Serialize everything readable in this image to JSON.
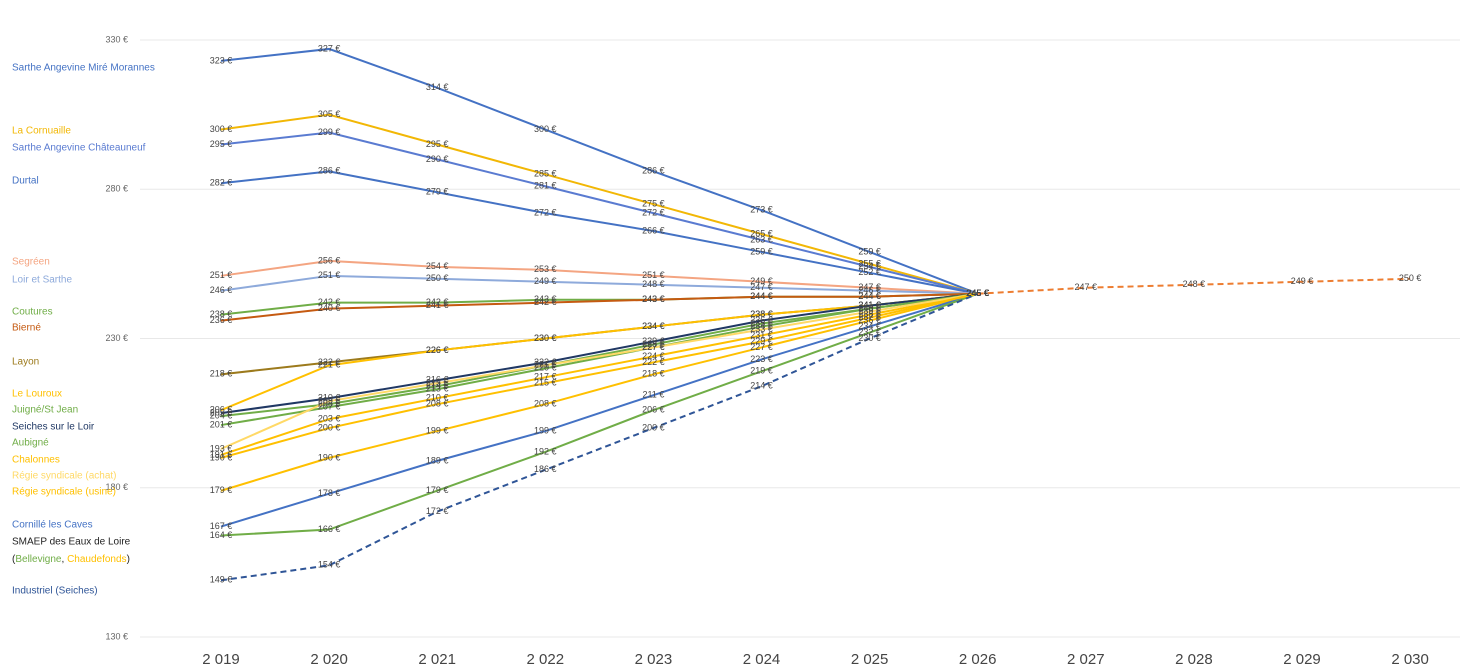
{
  "chart_data": {
    "type": "line",
    "categories": [
      "2 019",
      "2 020",
      "2 021",
      "2 022",
      "2 023",
      "2 024",
      "2 025",
      "2 026",
      "2 027",
      "2 028",
      "2 029",
      "2 030"
    ],
    "ylim": [
      130,
      330
    ],
    "yticks": [
      {
        "value": 130,
        "label": "130 €"
      },
      {
        "value": 180,
        "label": "180 €"
      },
      {
        "value": 230,
        "label": "230 €"
      },
      {
        "value": 280,
        "label": "280 €"
      },
      {
        "value": 330,
        "label": "330 €"
      }
    ],
    "grid": true,
    "legend_group": {
      "name": "SMAEP des Eaux de Loire",
      "open": "(",
      "sep": ", ",
      "close": ")"
    },
    "series": [
      {
        "name": "Sarthe Angevine Miré Morannes",
        "color": "#4472c4",
        "values": [
          323,
          327,
          314,
          300,
          286,
          273,
          259,
          245,
          null,
          null,
          null,
          null
        ],
        "value_labels": [
          "323 €",
          "327 €",
          "314 €",
          "300 €",
          "286 €",
          "273 €",
          "259 €",
          "245 €",
          null,
          null,
          null,
          null
        ]
      },
      {
        "name": "La Cornuaille",
        "color": "#f2b705",
        "values": [
          300,
          305,
          295,
          285,
          275,
          265,
          255,
          245,
          null,
          null,
          null,
          null
        ],
        "value_labels": [
          "300 €",
          "305 €",
          "295 €",
          "285 €",
          "275 €",
          "265 €",
          "255 €",
          "245 €",
          null,
          null,
          null,
          null
        ]
      },
      {
        "name": "Sarthe Angevine Châteauneuf",
        "color": "#5a7bd1",
        "values": [
          295,
          299,
          290,
          281,
          272,
          263,
          254,
          245,
          null,
          null,
          null,
          null
        ],
        "value_labels": [
          "295 €",
          "299 €",
          "290 €",
          "281 €",
          "272 €",
          "263 €",
          "254 €",
          "245 €",
          null,
          null,
          null,
          null
        ]
      },
      {
        "name": "Durtal",
        "color": "#4472c4",
        "values": [
          282,
          286,
          279,
          272,
          266,
          259,
          252,
          245,
          null,
          null,
          null,
          null
        ],
        "value_labels": [
          "282 €",
          "286 €",
          "279 €",
          "272 €",
          "266 €",
          "259 €",
          "252 €",
          "245 €",
          null,
          null,
          null,
          null
        ]
      },
      {
        "name": "Segréen",
        "color": "#f4a582",
        "values": [
          251,
          256,
          254,
          253,
          251,
          249,
          247,
          245,
          null,
          null,
          null,
          null
        ],
        "value_labels": [
          "251 €",
          "256 €",
          "254 €",
          "253 €",
          "251 €",
          "249 €",
          "247 €",
          "245 €",
          null,
          null,
          null,
          null
        ]
      },
      {
        "name": "Loir et Sarthe",
        "color": "#8eaadb",
        "values": [
          246,
          251,
          250,
          249,
          248,
          247,
          246,
          245,
          null,
          null,
          null,
          null
        ],
        "value_labels": [
          "246 €",
          "251 €",
          "250 €",
          "249 €",
          "248 €",
          "247 €",
          "246 €",
          "245 €",
          null,
          null,
          null,
          null
        ]
      },
      {
        "name": "Coutures",
        "color": "#70ad47",
        "values": [
          238,
          242,
          242,
          243,
          243,
          244,
          244,
          245,
          null,
          null,
          null,
          null
        ],
        "value_labels": [
          "238 €",
          "242 €",
          "242 €",
          "243 €",
          "243 €",
          "244 €",
          "244 €",
          "245 €",
          null,
          null,
          null,
          null
        ]
      },
      {
        "name": "Bierné",
        "color": "#c55a11",
        "values": [
          236,
          240,
          241,
          242,
          243,
          244,
          244,
          245,
          null,
          null,
          null,
          null
        ],
        "value_labels": [
          "236 €",
          "240 €",
          "241 €",
          "242 €",
          "243 €",
          "244 €",
          "244 €",
          "245 €",
          null,
          null,
          null,
          null
        ]
      },
      {
        "name": "Layon",
        "color": "#9c7a1c",
        "values": [
          218,
          222,
          226,
          230,
          234,
          238,
          241,
          245,
          null,
          null,
          null,
          null
        ],
        "value_labels": [
          "218 €",
          "222 €",
          "226 €",
          "230 €",
          "234 €",
          "238 €",
          "241 €",
          "245 €",
          null,
          null,
          null,
          null
        ]
      },
      {
        "name": "Le Louroux",
        "color": "#ffc000",
        "values": [
          206,
          221,
          226,
          230,
          234,
          238,
          241,
          245,
          null,
          null,
          null,
          null
        ],
        "value_labels": [
          "206 €",
          "221 €",
          "226 €",
          "230 €",
          "234 €",
          "238 €",
          "241 €",
          "245 €",
          null,
          null,
          null,
          null
        ]
      },
      {
        "name": "Juigné/St Jean",
        "color": "#70ad47",
        "values": [
          204,
          208,
          214,
          221,
          228,
          235,
          240,
          245,
          null,
          null,
          null,
          null
        ],
        "value_labels": [
          "204 €",
          "208 €",
          "214 €",
          "221 €",
          "228 €",
          "235 €",
          "240 €",
          "245 €",
          null,
          null,
          null,
          null
        ]
      },
      {
        "name": "Seiches sur le Loir",
        "color": "#203864",
        "values": [
          205,
          210,
          216,
          222,
          229,
          236,
          241,
          245,
          null,
          null,
          null,
          null
        ],
        "value_labels": [
          "205 €",
          "210 €",
          "216 €",
          "222 €",
          "229 €",
          "236 €",
          "241 €",
          "245 €",
          null,
          null,
          null,
          null
        ]
      },
      {
        "name": "Aubigné",
        "color": "#70ad47",
        "values": [
          201,
          207,
          213,
          220,
          227,
          234,
          240,
          245,
          null,
          null,
          null,
          null
        ],
        "value_labels": [
          "201 €",
          "207 €",
          "213 €",
          "220 €",
          "227 €",
          "234 €",
          "240 €",
          "245 €",
          null,
          null,
          null,
          null
        ]
      },
      {
        "name": "Chalonnes",
        "color": "#ffc000",
        "values": [
          191,
          203,
          210,
          217,
          224,
          231,
          238,
          245,
          null,
          null,
          null,
          null
        ],
        "value_labels": [
          "191 €",
          "203 €",
          "210 €",
          "217 €",
          "224 €",
          "231 €",
          "238 €",
          "245 €",
          null,
          null,
          null,
          null
        ]
      },
      {
        "name": "Régie syndicale (achat)",
        "color": "#ffd966",
        "values": [
          193,
          209,
          215,
          221,
          227,
          233,
          239,
          245,
          null,
          null,
          null,
          null
        ],
        "value_labels": [
          "193 €",
          "209 €",
          "215 €",
          "221 €",
          "227 €",
          "233 €",
          "239 €",
          "245 €",
          null,
          null,
          null,
          null
        ]
      },
      {
        "name": "Régie syndicale (usine)",
        "color": "#ffc000",
        "values": [
          179,
          190,
          199,
          208,
          218,
          227,
          236,
          245,
          null,
          null,
          null,
          null
        ],
        "value_labels": [
          "179 €",
          "190 €",
          "199 €",
          "208 €",
          "218 €",
          "227 €",
          "236 €",
          "245 €",
          null,
          null,
          null,
          null
        ]
      },
      {
        "name": "Cornillé les Caves",
        "color": "#4472c4",
        "values": [
          167,
          178,
          189,
          199,
          211,
          223,
          234,
          245,
          null,
          null,
          null,
          null
        ],
        "value_labels": [
          "167 €",
          "178 €",
          "189 €",
          "199 €",
          "211 €",
          "223 €",
          "234 €",
          "245 €",
          null,
          null,
          null,
          null
        ]
      },
      {
        "name": "Bellevigne",
        "color": "#70ad47",
        "values": [
          164,
          166,
          179,
          192,
          206,
          219,
          232,
          245,
          null,
          null,
          null,
          null
        ],
        "value_labels": [
          "164 €",
          "166 €",
          "179 €",
          "192 €",
          "206 €",
          "219 €",
          "232 €",
          "245 €",
          null,
          null,
          null,
          null
        ]
      },
      {
        "name": "Chaudefonds",
        "color": "#ffc000",
        "values": [
          190,
          200,
          208,
          215,
          222,
          229,
          237,
          245,
          null,
          null,
          null,
          null
        ],
        "value_labels": [
          "190 €",
          "200 €",
          "208 €",
          "215 €",
          "222 €",
          "229 €",
          "237 €",
          "245 €",
          null,
          null,
          null,
          null
        ]
      },
      {
        "name": "Industriel (Seiches)",
        "color": "#2f5597",
        "dashed": true,
        "values": [
          149,
          154,
          172,
          186,
          200,
          214,
          230,
          245,
          null,
          null,
          null,
          null
        ],
        "value_labels": [
          "149 €",
          "154 €",
          "172 €",
          "186 €",
          "200 €",
          "214 €",
          "230 €",
          "245 €",
          null,
          null,
          null,
          null
        ]
      },
      {
        "color": "#ed7d31",
        "dashed": true,
        "values": [
          null,
          null,
          null,
          null,
          null,
          null,
          null,
          245,
          247,
          248,
          249,
          250
        ],
        "value_labels": [
          null,
          null,
          null,
          null,
          null,
          null,
          null,
          "245 €",
          "247 €",
          "248 €",
          "249 €",
          "250 €"
        ]
      }
    ]
  }
}
